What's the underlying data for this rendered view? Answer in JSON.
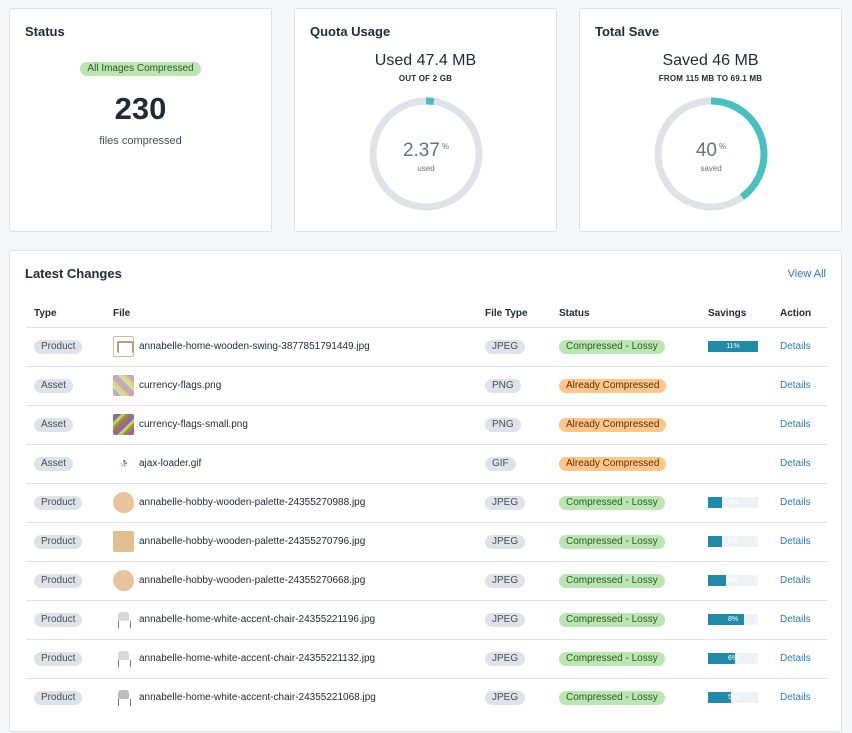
{
  "status": {
    "title": "Status",
    "badge": "All Images Compressed",
    "count": "230",
    "caption": "files compressed"
  },
  "quota": {
    "title": "Quota Usage",
    "headline": "Used 47.4 MB",
    "subline": "OUT OF 2 GB",
    "value": "2.37",
    "pct": "%",
    "label": "used",
    "fraction": 0.0237,
    "color": "#47c1bf"
  },
  "save": {
    "title": "Total Save",
    "headline": "Saved 46 MB",
    "subline": "FROM 115 MB TO 69.1 MB",
    "value": "40",
    "pct": "%",
    "label": "saved",
    "fraction": 0.4,
    "color": "#47c1bf"
  },
  "changes": {
    "title": "Latest Changes",
    "view_all": "View All",
    "columns": [
      "Type",
      "File",
      "File Type",
      "Status",
      "Savings",
      "Action"
    ],
    "rows": [
      {
        "type": "Product",
        "thumb": "thumb-swing",
        "file": "annabelle-home-wooden-swing-3877851791449.jpg",
        "ftype": "JPEG",
        "status": "Compressed - Lossy",
        "status_kind": "green",
        "savings": "11%",
        "savings_fraction": 0.11,
        "action": "Details"
      },
      {
        "type": "Asset",
        "thumb": "thumb-flags",
        "file": "currency-flags.png",
        "ftype": "PNG",
        "status": "Already Compressed",
        "status_kind": "orange",
        "savings": "",
        "savings_fraction": null,
        "action": "Details"
      },
      {
        "type": "Asset",
        "thumb": "thumb-flags2",
        "file": "currency-flags-small.png",
        "ftype": "PNG",
        "status": "Already Compressed",
        "status_kind": "orange",
        "savings": "",
        "savings_fraction": null,
        "action": "Details"
      },
      {
        "type": "Asset",
        "thumb": "thumb-loader",
        "file": "ajax-loader.gif",
        "ftype": "GIF",
        "status": "Already Compressed",
        "status_kind": "orange",
        "savings": "",
        "savings_fraction": null,
        "action": "Details"
      },
      {
        "type": "Product",
        "thumb": "thumb-palette",
        "file": "annabelle-hobby-wooden-palette-24355270988.jpg",
        "ftype": "JPEG",
        "status": "Compressed - Lossy",
        "status_kind": "green",
        "savings": "3%",
        "savings_fraction": 0.03,
        "action": "Details"
      },
      {
        "type": "Product",
        "thumb": "thumb-board",
        "file": "annabelle-hobby-wooden-palette-24355270796.jpg",
        "ftype": "JPEG",
        "status": "Compressed - Lossy",
        "status_kind": "green",
        "savings": "3%",
        "savings_fraction": 0.03,
        "action": "Details"
      },
      {
        "type": "Product",
        "thumb": "thumb-palette",
        "file": "annabelle-hobby-wooden-palette-24355270668.jpg",
        "ftype": "JPEG",
        "status": "Compressed - Lossy",
        "status_kind": "green",
        "savings": "4%",
        "savings_fraction": 0.04,
        "action": "Details"
      },
      {
        "type": "Product",
        "thumb": "thumb-chair",
        "file": "annabelle-home-white-accent-chair-24355221196.jpg",
        "ftype": "JPEG",
        "status": "Compressed - Lossy",
        "status_kind": "green",
        "savings": "8%",
        "savings_fraction": 0.08,
        "action": "Details"
      },
      {
        "type": "Product",
        "thumb": "thumb-chair",
        "file": "annabelle-home-white-accent-chair-24355221132.jpg",
        "ftype": "JPEG",
        "status": "Compressed - Lossy",
        "status_kind": "green",
        "savings": "6%",
        "savings_fraction": 0.06,
        "action": "Details"
      },
      {
        "type": "Product",
        "thumb": "thumb-chair thumb-chair-grey",
        "file": "annabelle-home-white-accent-chair-24355221068.jpg",
        "ftype": "JPEG",
        "status": "Compressed - Lossy",
        "status_kind": "green",
        "savings": "5%",
        "savings_fraction": 0.05,
        "action": "Details"
      }
    ]
  }
}
